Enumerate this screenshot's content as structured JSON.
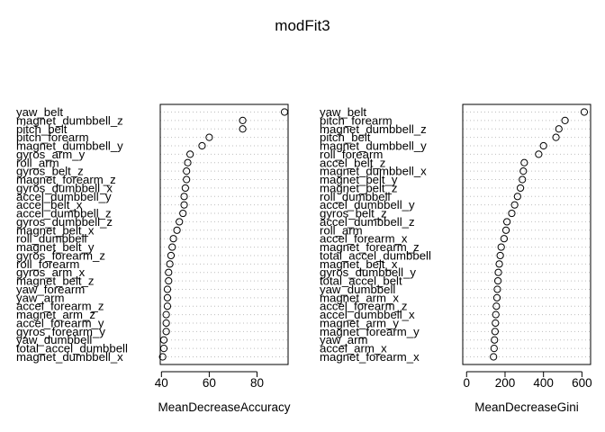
{
  "chart_data": {
    "type": "dotchart",
    "title": "modFit3",
    "panels": [
      {
        "xlabel": "MeanDecreaseAccuracy",
        "xlim": [
          39.5,
          93
        ],
        "ticks": [
          40,
          60,
          80
        ],
        "rows": [
          {
            "label": "yaw_belt",
            "value": 91.5
          },
          {
            "label": "magnet_dumbbell_z",
            "value": 74
          },
          {
            "label": "pitch_belt",
            "value": 74
          },
          {
            "label": "pitch_forearm",
            "value": 60
          },
          {
            "label": "magnet_dumbbell_y",
            "value": 57
          },
          {
            "label": "gyros_arm_y",
            "value": 52
          },
          {
            "label": "roll_arm",
            "value": 51
          },
          {
            "label": "gyros_belt_z",
            "value": 50.5
          },
          {
            "label": "magnet_forearm_z",
            "value": 50.5
          },
          {
            "label": "gyros_dumbbell_x",
            "value": 50
          },
          {
            "label": "accel_dumbbell_y",
            "value": 49.5
          },
          {
            "label": "accel_belt_x",
            "value": 49.5
          },
          {
            "label": "accel_dumbbell_z",
            "value": 49
          },
          {
            "label": "gyros_dumbbell_z",
            "value": 47.5
          },
          {
            "label": "magnet_belt_x",
            "value": 46.5
          },
          {
            "label": "roll_dumbbell",
            "value": 45
          },
          {
            "label": "magnet_belt_y",
            "value": 44.5
          },
          {
            "label": "gyros_forearm_z",
            "value": 44
          },
          {
            "label": "roll_forearm",
            "value": 43.5
          },
          {
            "label": "gyros_arm_x",
            "value": 43
          },
          {
            "label": "magnet_belt_z",
            "value": 43
          },
          {
            "label": "yaw_forearm",
            "value": 42.5
          },
          {
            "label": "yaw_arm",
            "value": 42.5
          },
          {
            "label": "accel_forearm_z",
            "value": 42.5
          },
          {
            "label": "magnet_arm_z",
            "value": 42
          },
          {
            "label": "accel_forearm_y",
            "value": 42
          },
          {
            "label": "gyros_forearm_y",
            "value": 42
          },
          {
            "label": "yaw_dumbbell",
            "value": 41
          },
          {
            "label": "total_accel_dumbbell",
            "value": 41
          },
          {
            "label": "magnet_dumbbell_x",
            "value": 40.5
          }
        ]
      },
      {
        "xlabel": "MeanDecreaseGini",
        "xlim": [
          -20,
          645
        ],
        "ticks": [
          0,
          200,
          400,
          600
        ],
        "rows": [
          {
            "label": "yaw_belt",
            "value": 612
          },
          {
            "label": "pitch_forearm",
            "value": 512
          },
          {
            "label": "magnet_dumbbell_z",
            "value": 480
          },
          {
            "label": "pitch_belt",
            "value": 465
          },
          {
            "label": "magnet_dumbbell_y",
            "value": 400
          },
          {
            "label": "roll_forearm",
            "value": 375
          },
          {
            "label": "accel_belt_z",
            "value": 300
          },
          {
            "label": "magnet_dumbbell_x",
            "value": 295
          },
          {
            "label": "magnet_belt_y",
            "value": 290
          },
          {
            "label": "magnet_belt_z",
            "value": 280
          },
          {
            "label": "roll_dumbbell",
            "value": 265
          },
          {
            "label": "accel_dumbbell_y",
            "value": 250
          },
          {
            "label": "gyros_belt_z",
            "value": 235
          },
          {
            "label": "accel_dumbbell_z",
            "value": 210
          },
          {
            "label": "roll_arm",
            "value": 205
          },
          {
            "label": "accel_forearm_x",
            "value": 195
          },
          {
            "label": "magnet_forearm_z",
            "value": 180
          },
          {
            "label": "total_accel_dumbbell",
            "value": 175
          },
          {
            "label": "magnet_belt_x",
            "value": 170
          },
          {
            "label": "gyros_dumbbell_y",
            "value": 165
          },
          {
            "label": "total_accel_belt",
            "value": 163
          },
          {
            "label": "yaw_dumbbell",
            "value": 160
          },
          {
            "label": "magnet_arm_x",
            "value": 158
          },
          {
            "label": "accel_forearm_z",
            "value": 155
          },
          {
            "label": "accel_dumbbell_x",
            "value": 152
          },
          {
            "label": "magnet_arm_y",
            "value": 150
          },
          {
            "label": "magnet_forearm_y",
            "value": 148
          },
          {
            "label": "yaw_arm",
            "value": 145
          },
          {
            "label": "accel_arm_x",
            "value": 143
          },
          {
            "label": "magnet_forearm_x",
            "value": 140
          }
        ]
      }
    ]
  }
}
